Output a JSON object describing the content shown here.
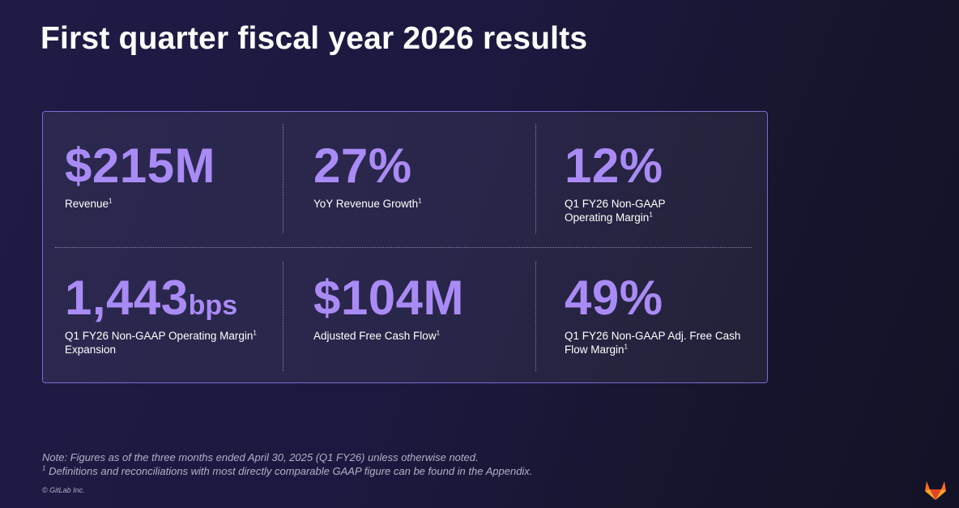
{
  "slide": {
    "title": "First quarter fiscal year 2026 results"
  },
  "metrics": [
    {
      "value": "$215M",
      "unit": "",
      "label": "Revenue",
      "label2": "",
      "footnote": "1"
    },
    {
      "value": "27%",
      "unit": "",
      "label": "YoY Revenue Growth",
      "label2": "",
      "footnote": "1"
    },
    {
      "value": "12%",
      "unit": "",
      "label": "Q1 FY26 Non-GAAP",
      "label2": "Operating Margin",
      "footnote": "1"
    },
    {
      "value": "1,443",
      "unit": "bps",
      "label": "Q1 FY26 Non-GAAP Operating Margin",
      "label2": "Expansion",
      "footnote": "1"
    },
    {
      "value": "$104M",
      "unit": "",
      "label": "Adjusted Free Cash Flow",
      "label2": "",
      "footnote": "1"
    },
    {
      "value": "49%",
      "unit": "",
      "label": "Q1 FY26 Non-GAAP Adj. Free Cash",
      "label2": "Flow Margin",
      "footnote": "1"
    }
  ],
  "notes": {
    "line1": "Note:  Figures as of the three months ended April 30, 2025 (Q1 FY26) unless otherwise noted.",
    "footnote_marker": "1",
    "line2": " Definitions and reconciliations with most directly comparable GAAP figure can be found in the Appendix."
  },
  "copyright": "© GitLab Inc.",
  "colors": {
    "accent": "#a98bf5",
    "panel_border": "#7d6bd0",
    "logo_orange": "#fc6d26",
    "logo_red": "#e24329",
    "logo_light": "#fca326"
  },
  "icons": {
    "logo": "gitlab-tanuki-icon"
  }
}
